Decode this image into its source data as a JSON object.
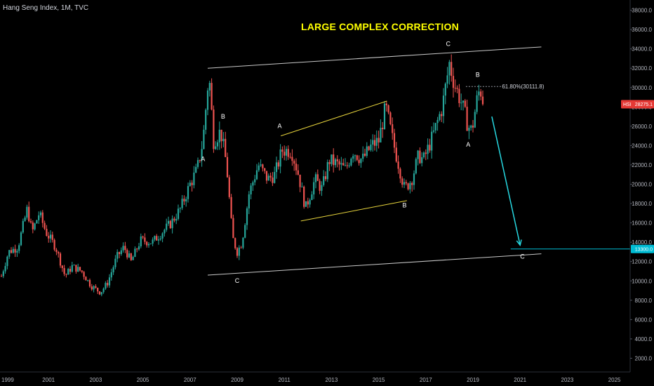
{
  "header": {
    "symbol_info": "Hang Seng Index, 1M, TVC"
  },
  "chart_data": {
    "type": "candlestick",
    "title": "LARGE COMPLEX CORRECTION",
    "symbol": "Hang Seng Index, 1M, TVC",
    "y_ticks": [
      2000,
      4000,
      6000,
      8000,
      10000,
      12000,
      14000,
      16000,
      18000,
      20000,
      22000,
      24000,
      26000,
      28000,
      30000,
      32000,
      34000,
      36000,
      38000
    ],
    "y_tick_labels": [
      "2000.0",
      "4000.0",
      "6000.0",
      "8000.0",
      "10000.0",
      "12000.0",
      "14000.0",
      "16000.0",
      "18000.0",
      "20000.0",
      "22000.0",
      "24000.0",
      "26000.0",
      "28000.0",
      "30000.0",
      "32000.0",
      "34000.0",
      "36000.0",
      "38000.0"
    ],
    "x_ticks": [
      "1999",
      "2001",
      "2003",
      "2005",
      "2007",
      "2009",
      "2011",
      "2013",
      "2015",
      "2017",
      "2019",
      "2021",
      "2023",
      "2025"
    ],
    "ylim": [
      0,
      39000
    ],
    "xlim": [
      1999.0,
      2026.3
    ],
    "colors": {
      "up": "#26a69a",
      "down": "#ef5350",
      "background": "#000000",
      "channel": "#c8c8c8",
      "inner_channel": "#e6d33c",
      "projection": "#26d7e0",
      "price_tag": "#e53935",
      "target_tag": "#00bcd4",
      "title": "#ffff00"
    },
    "price_path": [
      [
        1999.0,
        10500
      ],
      [
        1999.3,
        13000
      ],
      [
        1999.7,
        13500
      ],
      [
        2000.1,
        17500
      ],
      [
        2000.3,
        15000
      ],
      [
        2000.6,
        17000
      ],
      [
        2000.9,
        15000
      ],
      [
        2001.3,
        13500
      ],
      [
        2001.7,
        10500
      ],
      [
        2002.0,
        11500
      ],
      [
        2002.4,
        11000
      ],
      [
        2002.8,
        9500
      ],
      [
        2003.2,
        8800
      ],
      [
        2003.5,
        9800
      ],
      [
        2003.9,
        12500
      ],
      [
        2004.2,
        13500
      ],
      [
        2004.5,
        12000
      ],
      [
        2004.9,
        14200
      ],
      [
        2005.4,
        14000
      ],
      [
        2005.8,
        15000
      ],
      [
        2006.2,
        16000
      ],
      [
        2006.6,
        17500
      ],
      [
        2007.0,
        20000
      ],
      [
        2007.3,
        21500
      ],
      [
        2007.55,
        24500
      ],
      [
        2007.8,
        31500
      ],
      [
        2008.0,
        24500
      ],
      [
        2008.3,
        25500
      ],
      [
        2008.55,
        22000
      ],
      [
        2008.8,
        14500
      ],
      [
        2009.0,
        13000
      ],
      [
        2009.2,
        14000
      ],
      [
        2009.5,
        19000
      ],
      [
        2009.9,
        22000
      ],
      [
        2010.3,
        20500
      ],
      [
        2010.6,
        21000
      ],
      [
        2010.9,
        23500
      ],
      [
        2011.3,
        23500
      ],
      [
        2011.6,
        21000
      ],
      [
        2011.9,
        17500
      ],
      [
        2012.3,
        20500
      ],
      [
        2012.6,
        19500
      ],
      [
        2012.9,
        22500
      ],
      [
        2013.3,
        22000
      ],
      [
        2013.6,
        21500
      ],
      [
        2013.9,
        23500
      ],
      [
        2014.3,
        22500
      ],
      [
        2014.7,
        24000
      ],
      [
        2015.0,
        24500
      ],
      [
        2015.3,
        28000
      ],
      [
        2015.6,
        24500
      ],
      [
        2015.9,
        21500
      ],
      [
        2016.1,
        19500
      ],
      [
        2016.4,
        20500
      ],
      [
        2016.7,
        23000
      ],
      [
        2016.9,
        22500
      ],
      [
        2017.3,
        25000
      ],
      [
        2017.7,
        28000
      ],
      [
        2018.0,
        32500
      ],
      [
        2018.2,
        30500
      ],
      [
        2018.5,
        28500
      ],
      [
        2018.8,
        26000
      ],
      [
        2018.95,
        25500
      ],
      [
        2019.15,
        28500
      ],
      [
        2019.3,
        30000
      ],
      [
        2019.45,
        28275
      ]
    ],
    "overlays": {
      "upper_channel": {
        "from": [
          2007.75,
          32000
        ],
        "to": [
          2021.9,
          34200
        ]
      },
      "lower_channel": {
        "from": [
          2007.75,
          10600
        ],
        "to": [
          2021.9,
          12800
        ]
      },
      "inner_upper": {
        "from": [
          2010.85,
          25000
        ],
        "to": [
          2015.35,
          28600
        ]
      },
      "inner_lower": {
        "from": [
          2011.7,
          16200
        ],
        "to": [
          2016.2,
          18300
        ]
      },
      "projection_arrow": {
        "from": [
          2019.8,
          27000
        ],
        "to": [
          2021.0,
          13700
        ]
      },
      "target_line": {
        "y": 13300,
        "from_x": 2020.6
      },
      "fib_line": {
        "y": 30111.8,
        "from_x": 2018.7,
        "to_x": 2020.2
      }
    },
    "fib_label": "61.80%(30111.8)",
    "price_tag": {
      "symbol": "HSI",
      "value": "28275.1",
      "y": 28275
    },
    "target_tag": {
      "value": "13300.0",
      "y": 13300
    },
    "wave_labels": [
      {
        "text": "A",
        "x": 2007.55,
        "y": 22400
      },
      {
        "text": "B",
        "x": 2008.4,
        "y": 26800
      },
      {
        "text": "C",
        "x": 2009.0,
        "y": 9800
      },
      {
        "text": "A",
        "x": 2010.8,
        "y": 25800
      },
      {
        "text": "B",
        "x": 2016.1,
        "y": 17600
      },
      {
        "text": "C",
        "x": 2017.95,
        "y": 34300
      },
      {
        "text": "A",
        "x": 2018.8,
        "y": 23900
      },
      {
        "text": "B",
        "x": 2019.2,
        "y": 31100
      },
      {
        "text": "C",
        "x": 2021.1,
        "y": 12300
      }
    ]
  }
}
